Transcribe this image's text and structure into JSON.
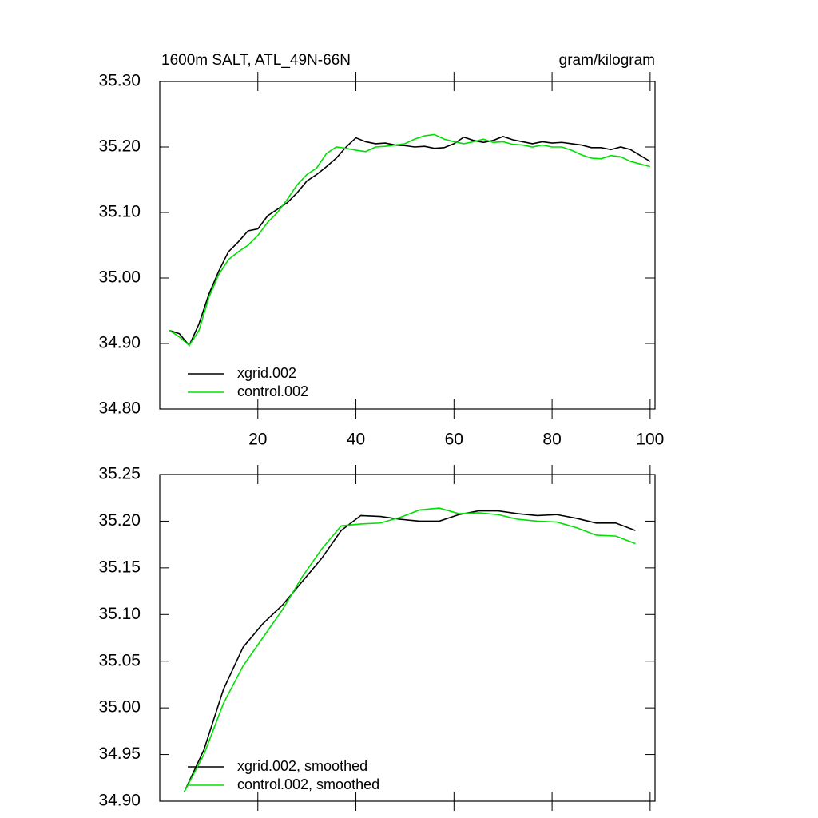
{
  "chart_data": [
    {
      "type": "line",
      "title": "1600m SALT, ATL_49N-66N",
      "subtitle": "gram/kilogram",
      "x": [
        2,
        4,
        6,
        8,
        10,
        12,
        14,
        16,
        18,
        20,
        22,
        24,
        26,
        28,
        30,
        32,
        34,
        36,
        38,
        40,
        42,
        44,
        46,
        48,
        50,
        52,
        54,
        56,
        58,
        60,
        62,
        64,
        66,
        68,
        70,
        72,
        74,
        76,
        78,
        80,
        82,
        84,
        86,
        88,
        90,
        92,
        94,
        96,
        98,
        100
      ],
      "series": [
        {
          "name": "xgrid.002",
          "color": "#000000",
          "values": [
            34.92,
            34.915,
            34.897,
            34.93,
            34.975,
            35.01,
            35.04,
            35.055,
            35.072,
            35.075,
            35.095,
            35.105,
            35.115,
            35.13,
            35.148,
            35.158,
            35.17,
            35.183,
            35.2,
            35.214,
            35.208,
            35.205,
            35.206,
            35.203,
            35.202,
            35.2,
            35.201,
            35.198,
            35.199,
            35.205,
            35.215,
            35.21,
            35.207,
            35.21,
            35.216,
            35.211,
            35.208,
            35.205,
            35.208,
            35.206,
            35.207,
            35.205,
            35.203,
            35.199,
            35.199,
            35.196,
            35.2,
            35.196,
            35.187,
            35.178
          ]
        },
        {
          "name": "control.002",
          "color": "#00e000",
          "values": [
            34.92,
            34.91,
            34.897,
            34.92,
            34.97,
            35.005,
            35.028,
            35.04,
            35.05,
            35.065,
            35.085,
            35.1,
            35.12,
            35.142,
            35.158,
            35.168,
            35.19,
            35.2,
            35.198,
            35.195,
            35.193,
            35.2,
            35.201,
            35.203,
            35.205,
            35.212,
            35.217,
            35.219,
            35.212,
            35.208,
            35.205,
            35.208,
            35.212,
            35.207,
            35.208,
            35.204,
            35.203,
            35.2,
            35.203,
            35.2,
            35.2,
            35.195,
            35.188,
            35.183,
            35.182,
            35.187,
            35.185,
            35.178,
            35.174,
            35.17
          ]
        }
      ],
      "xlim": [
        0,
        101
      ],
      "xticks": [
        20,
        40,
        60,
        80,
        100
      ],
      "xtick_labels": true,
      "ylim": [
        34.8,
        35.3
      ],
      "yticks": [
        {
          "value": 34.8,
          "label": "34.80"
        },
        {
          "value": 34.9,
          "label": "34.90"
        },
        {
          "value": 35.0,
          "label": "35.00"
        },
        {
          "value": 35.1,
          "label": "35.10"
        },
        {
          "value": 35.2,
          "label": "35.20"
        },
        {
          "value": 35.3,
          "label": "35.30"
        }
      ]
    },
    {
      "type": "line",
      "x": [
        5,
        9,
        13,
        17,
        21,
        25,
        29,
        33,
        37,
        41,
        45,
        49,
        53,
        57,
        61,
        65,
        69,
        73,
        77,
        81,
        85,
        89,
        93,
        97
      ],
      "series": [
        {
          "name": "xgrid.002, smoothed",
          "color": "#000000",
          "values": [
            34.91,
            34.955,
            35.02,
            35.065,
            35.09,
            35.11,
            35.135,
            35.16,
            35.19,
            35.206,
            35.205,
            35.202,
            35.2,
            35.2,
            35.207,
            35.211,
            35.211,
            35.208,
            35.206,
            35.207,
            35.203,
            35.198,
            35.198,
            35.19
          ]
        },
        {
          "name": "control.002, smoothed",
          "color": "#00e000",
          "values": [
            34.91,
            34.95,
            35.005,
            35.045,
            35.075,
            35.105,
            35.14,
            35.17,
            35.195,
            35.197,
            35.198,
            35.204,
            35.212,
            35.214,
            35.208,
            35.209,
            35.207,
            35.202,
            35.2,
            35.199,
            35.193,
            35.185,
            35.184,
            35.176
          ]
        }
      ],
      "xlim": [
        0,
        101
      ],
      "xticks": [
        20,
        40,
        60,
        80,
        100
      ],
      "xtick_labels": false,
      "ylim": [
        34.9,
        35.25
      ],
      "yticks": [
        {
          "value": 34.9,
          "label": "34.90"
        },
        34.95,
        {
          "value": 35.0,
          "label": "35.00"
        },
        35.05,
        {
          "value": 35.1,
          "label": "35.10"
        },
        35.15,
        {
          "value": 35.2,
          "label": "35.20"
        },
        35.25
      ]
    }
  ]
}
